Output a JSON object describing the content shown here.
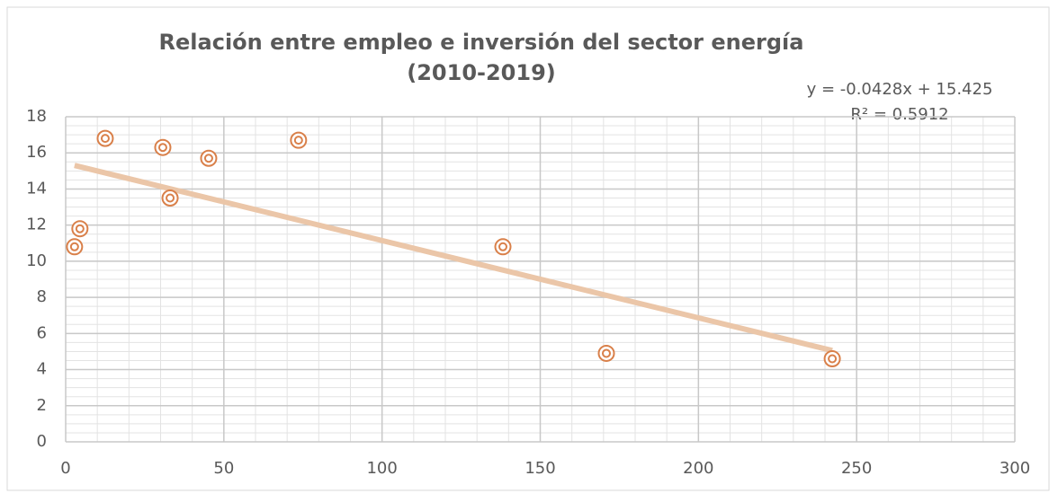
{
  "chart_data": {
    "type": "scatter",
    "title": [
      "Relación entre empleo e inversión del sector energía",
      "(2010-2019)"
    ],
    "x": [
      2.8,
      4.5,
      12.5,
      30.7,
      33,
      45.2,
      73.6,
      138.2,
      170.9,
      242.3
    ],
    "series": [
      {
        "color": "#d9804a",
        "values": [
          10.8,
          11.8,
          16.8,
          16.3,
          13.5,
          15.7,
          16.7,
          10.8,
          4.9,
          4.6
        ]
      }
    ],
    "trendline": {
      "slope": -0.0428,
      "intercept": 15.425,
      "color": "#ebc6a8",
      "equation": "y = -0.0428x + 15.425",
      "r2": "R² = 0.5912"
    },
    "xlim": [
      0,
      300
    ],
    "xticks": [
      0,
      50,
      100,
      150,
      200,
      250,
      300
    ],
    "ylim": [
      0,
      18
    ],
    "yticks": [
      0,
      2,
      4,
      6,
      8,
      10,
      12,
      14,
      16,
      18
    ],
    "grid": true,
    "minor_grid": {
      "x": 10,
      "y": 0.5
    }
  }
}
